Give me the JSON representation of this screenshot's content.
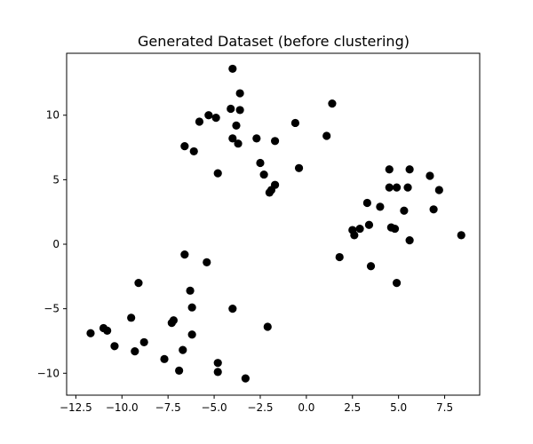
{
  "chart_data": {
    "type": "scatter",
    "title": "Generated Dataset (before clustering)",
    "xlabel": "",
    "ylabel": "",
    "xlim": [
      -13.0,
      9.4
    ],
    "ylim": [
      -11.7,
      14.8
    ],
    "x_ticks": [
      -12.5,
      -10.0,
      -7.5,
      -5.0,
      -2.5,
      0.0,
      2.5,
      5.0,
      7.5
    ],
    "x_tick_labels": [
      "−12.5",
      "−10.0",
      "−7.5",
      "−5.0",
      "−2.5",
      "0.0",
      "2.5",
      "5.0",
      "7.5"
    ],
    "y_ticks": [
      -10,
      -5,
      0,
      5,
      10
    ],
    "y_tick_labels": [
      "−10",
      "−5",
      "0",
      "5",
      "10"
    ],
    "grid": false,
    "marker_color": "#000000",
    "points": [
      {
        "x": -4.0,
        "y": 13.6
      },
      {
        "x": -3.6,
        "y": 11.7
      },
      {
        "x": -4.1,
        "y": 10.5
      },
      {
        "x": -3.6,
        "y": 10.4
      },
      {
        "x": -5.3,
        "y": 10.0
      },
      {
        "x": -4.9,
        "y": 9.8
      },
      {
        "x": -5.8,
        "y": 9.5
      },
      {
        "x": -3.8,
        "y": 9.2
      },
      {
        "x": 1.4,
        "y": 10.9
      },
      {
        "x": -0.6,
        "y": 9.4
      },
      {
        "x": 1.1,
        "y": 8.4
      },
      {
        "x": -4.0,
        "y": 8.2
      },
      {
        "x": -2.7,
        "y": 8.2
      },
      {
        "x": -1.7,
        "y": 8.0
      },
      {
        "x": -3.7,
        "y": 7.8
      },
      {
        "x": -6.6,
        "y": 7.6
      },
      {
        "x": -6.1,
        "y": 7.2
      },
      {
        "x": -2.5,
        "y": 6.3
      },
      {
        "x": -0.4,
        "y": 5.9
      },
      {
        "x": -2.3,
        "y": 5.4
      },
      {
        "x": -4.8,
        "y": 5.5
      },
      {
        "x": -1.7,
        "y": 4.6
      },
      {
        "x": -1.9,
        "y": 4.2
      },
      {
        "x": -2.0,
        "y": 4.0
      },
      {
        "x": 4.5,
        "y": 5.8
      },
      {
        "x": 5.6,
        "y": 5.8
      },
      {
        "x": 6.7,
        "y": 5.3
      },
      {
        "x": 4.5,
        "y": 4.4
      },
      {
        "x": 4.9,
        "y": 4.4
      },
      {
        "x": 5.5,
        "y": 4.4
      },
      {
        "x": 7.2,
        "y": 4.2
      },
      {
        "x": 3.3,
        "y": 3.2
      },
      {
        "x": 4.0,
        "y": 2.9
      },
      {
        "x": 5.3,
        "y": 2.6
      },
      {
        "x": 6.9,
        "y": 2.7
      },
      {
        "x": 3.4,
        "y": 1.5
      },
      {
        "x": 4.6,
        "y": 1.3
      },
      {
        "x": 4.8,
        "y": 1.2
      },
      {
        "x": 2.5,
        "y": 1.1
      },
      {
        "x": 2.9,
        "y": 1.2
      },
      {
        "x": 2.6,
        "y": 0.7
      },
      {
        "x": 5.6,
        "y": 0.3
      },
      {
        "x": 8.4,
        "y": 0.7
      },
      {
        "x": 1.8,
        "y": -1.0
      },
      {
        "x": 3.5,
        "y": -1.7
      },
      {
        "x": 4.9,
        "y": -3.0
      },
      {
        "x": -6.6,
        "y": -0.8
      },
      {
        "x": -5.4,
        "y": -1.4
      },
      {
        "x": -9.1,
        "y": -3.0
      },
      {
        "x": -6.3,
        "y": -3.6
      },
      {
        "x": -6.2,
        "y": -4.9
      },
      {
        "x": -4.0,
        "y": -5.0
      },
      {
        "x": -9.5,
        "y": -5.7
      },
      {
        "x": -7.2,
        "y": -5.9
      },
      {
        "x": -7.3,
        "y": -6.1
      },
      {
        "x": -11.0,
        "y": -6.5
      },
      {
        "x": -10.8,
        "y": -6.7
      },
      {
        "x": -11.7,
        "y": -6.9
      },
      {
        "x": -2.1,
        "y": -6.4
      },
      {
        "x": -6.2,
        "y": -7.0
      },
      {
        "x": -8.8,
        "y": -7.6
      },
      {
        "x": -10.4,
        "y": -7.9
      },
      {
        "x": -9.3,
        "y": -8.3
      },
      {
        "x": -6.7,
        "y": -8.2
      },
      {
        "x": -7.7,
        "y": -8.9
      },
      {
        "x": -4.8,
        "y": -9.2
      },
      {
        "x": -6.9,
        "y": -9.8
      },
      {
        "x": -4.8,
        "y": -9.9
      },
      {
        "x": -3.3,
        "y": -10.4
      }
    ]
  }
}
